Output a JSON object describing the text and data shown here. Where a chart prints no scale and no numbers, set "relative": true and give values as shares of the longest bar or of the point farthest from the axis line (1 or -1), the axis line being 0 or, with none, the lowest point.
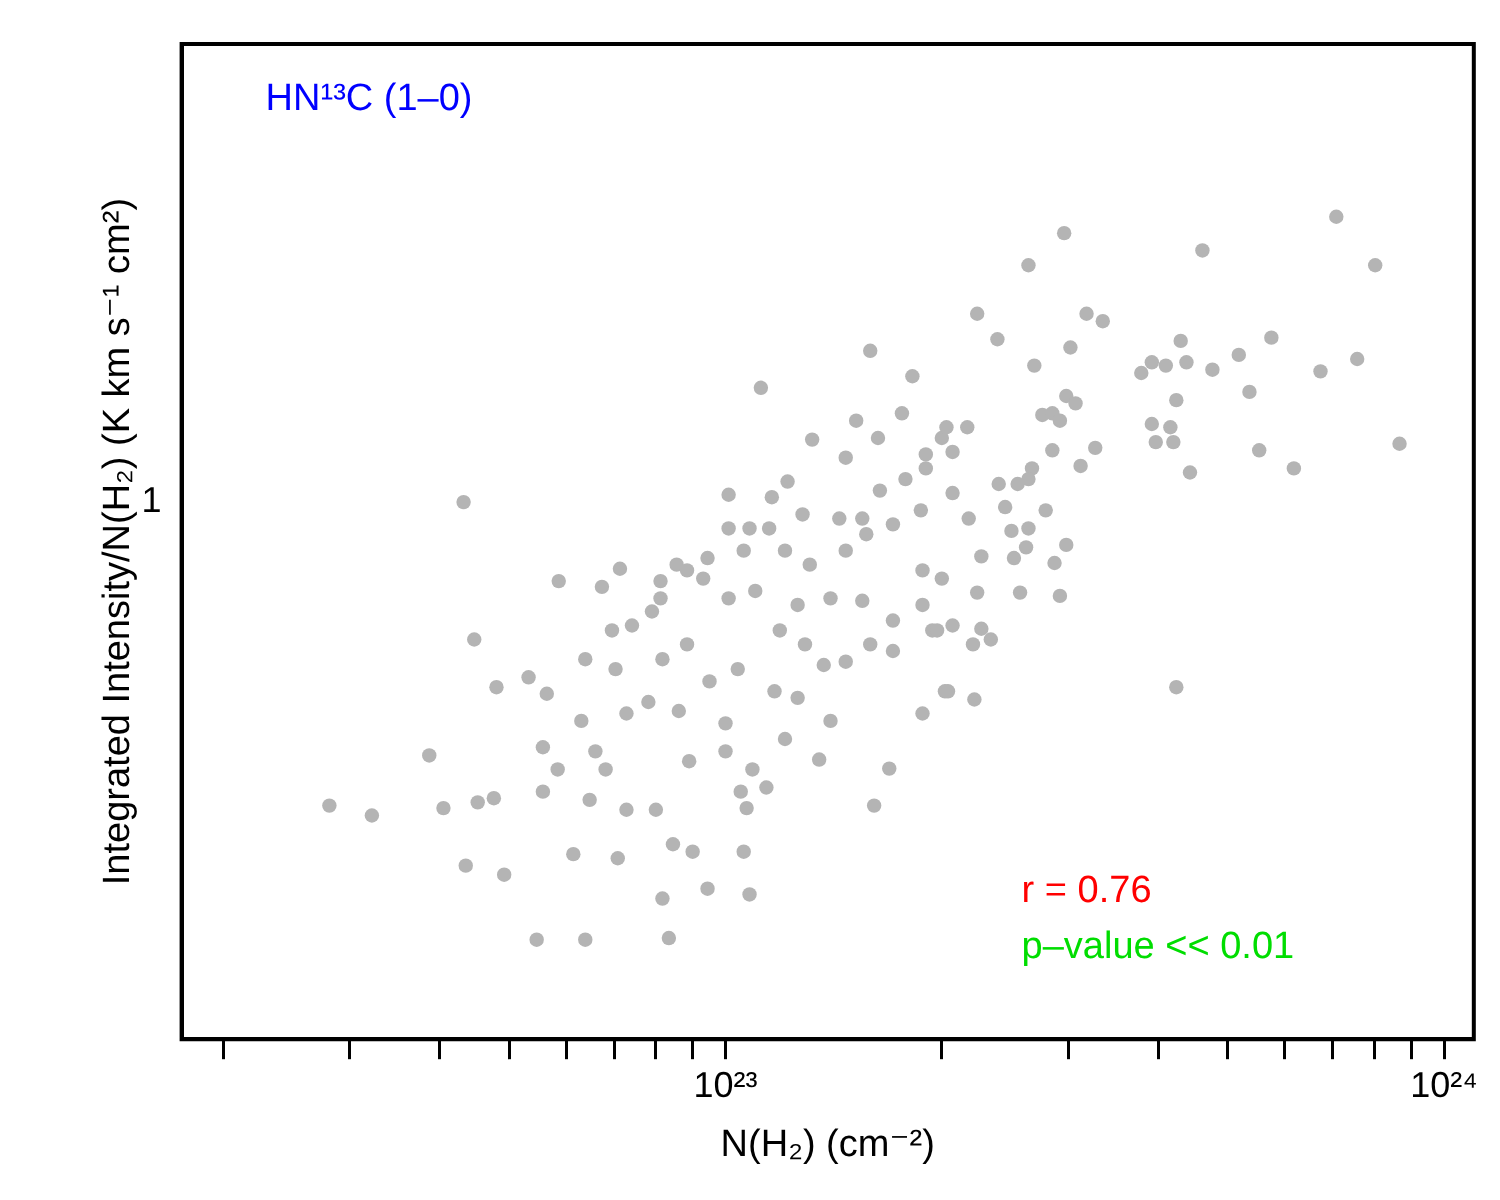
{
  "chart_data": {
    "type": "scatter",
    "xlabel": "N(H₂) (cm⁻²)",
    "ylabel": "Integrated Intensity/N(H₂) (K km s⁻¹ cm²)",
    "annotations": [
      "HN¹³C (1–0)",
      "r = 0.76",
      "p–value << 0.01",
      "1"
    ],
    "log": "x",
    "grid": false,
    "marker": "circle",
    "relative": true,
    "xlim": [
      1.75e+22,
      1.1e+24
    ],
    "xticks": [
      {
        "value": 2e+22,
        "label": null
      },
      {
        "value": 3e+22,
        "label": null
      },
      {
        "value": 4e+22,
        "label": null
      },
      {
        "value": 5e+22,
        "label": null
      },
      {
        "value": 6e+22,
        "label": null
      },
      {
        "value": 7e+22,
        "label": null
      },
      {
        "value": 8e+22,
        "label": null
      },
      {
        "value": 9e+22,
        "label": null
      },
      {
        "value": 1e+23,
        "label": "10²³"
      },
      {
        "value": 2e+23,
        "label": null
      },
      {
        "value": 3e+23,
        "label": null
      },
      {
        "value": 4e+23,
        "label": null
      },
      {
        "value": 5e+23,
        "label": null
      },
      {
        "value": 6e+23,
        "label": null
      },
      {
        "value": 7e+23,
        "label": null
      },
      {
        "value": 8e+23,
        "label": null
      },
      {
        "value": 9e+23,
        "label": null
      },
      {
        "value": 1e+24,
        "label": "10²⁴"
      }
    ],
    "series": [
      {
        "color": "#b4b4b4",
        "x": [
          4.32e+22,
          4.47e+22,
          3.87e+22,
          2.81e+22,
          3.22e+22,
          4.05e+22,
          4.35e+22,
          4.92e+22,
          4.52e+22,
          4.76e+22,
          5.46e+22,
          4.8e+22,
          5.32e+22,
          5.64e+22,
          5.57e+22,
          5.57e+22,
          5.86e+22,
          6.73e+22,
          7.13e+22,
          7.9e+22,
          8.12e+22,
          8.55e+22,
          1.01e+23,
          1.12e+23,
          1.16e+23,
          1.22e+23,
          1.32e+23,
          1.52e+23,
          1.59e+23,
          1.82e+23,
          1.76e+23,
          1.47e+23,
          1.63e+23,
          6.38e+22,
          7.03e+22,
          6.3e+22,
          6.59e+22,
          5.84e+22,
          6.81e+22,
          8e+22,
          7.28e+22,
          6.47e+22,
          6.14e+22,
          7.08e+22,
          8.45e+22,
          9e+22,
          1.06e+23,
          8.17e+22,
          9.44e+22,
          1.08e+23,
          6.38e+22,
          8.34e+22,
          1.07e+23,
          1.14e+23,
          1.05e+23,
          1.09e+23,
          8.9e+22,
          1e+23,
          1.21e+23,
          1.35e+23,
          1.69e+23,
          1.61e+23,
          1.88e+23,
          2.02e+23,
          1.17e+23,
          1.26e+23,
          1.4e+23,
          1e+23,
          8.61e+22,
          7.81e+22,
          7.28e+22,
          8.17e+22,
          8.84e+22,
          9.5e+22,
          1.04e+23,
          1.19e+23,
          1.29e+23,
          1.37e+23,
          1.47e+23,
          1.59e+23,
          1.71e+23,
          1.71e+23,
          1.55e+23,
          1.4e+23,
          1.26e+23,
          1.1e+23,
          1.01e+23,
          9.31e+22,
          9.44e+22,
          1.06e+23,
          1.21e+23,
          1.31e+23,
          1.47e+23,
          1.57e+23,
          1.71e+23,
          1.87e+23,
          1.55e+23,
          1.64e+23,
          1.78e+23,
          1.9e+23,
          1.01e+23,
          1.08e+23,
          1.15e+23,
          1.28e+23,
          1.44e+23,
          8.84e+22,
          8.12e+22,
          7.41e+22,
          6.95e+22,
          1.88e+23,
          2e+23,
          1.94e+23,
          1.88e+23,
          7.08e+23,
          2.96e+23,
          2.64e+23,
          4.61e+23,
          8.02e+23,
          2.24e+23,
          3.18e+23,
          3.35e+23,
          2.39e+23,
          3.02e+23,
          2.69e+23,
          3.79e+23,
          3.92e+23,
          4.1e+23,
          4.3e+23,
          4.38e+23,
          4.76e+23,
          5.18e+23,
          5.75e+23,
          6.73e+23,
          7.57e+23,
          8.67e+23,
          5.36e+23,
          6.18e+23,
          5.53e+23,
          4.24e+23,
          3.92e+23,
          4.16e+23,
          4.2e+23,
          3.97e+23,
          4.43e+23,
          4.24e+23,
          3.27e+23,
          3.12e+23,
          2.98e+23,
          3.07e+23,
          2.76e+23,
          2.85e+23,
          2.92e+23,
          2.85e+23,
          2.67e+23,
          2.64e+23,
          2.4e+23,
          2.55e+23,
          2.45e+23,
          2.79e+23,
          2.98e+23,
          2.64e+23,
          2.5e+23,
          2.62e+23,
          2.52e+23,
          2.27e+23,
          2.87e+23,
          2.57e+23,
          2.92e+23,
          2.24e+23,
          2.27e+23,
          2.34e+23,
          2.21e+23,
          2.07e+23,
          1.97e+23,
          2.04e+23,
          2.22e+23,
          2.18e+23,
          2.07e+23,
          2.07e+23,
          2e+23,
          2.17e+23,
          2.03e+23,
          1.9e+23
        ],
        "values": [
          0.653,
          0.486,
          0.345,
          0.284,
          0.272,
          0.281,
          0.211,
          0.2,
          0.288,
          0.293,
          0.121,
          0.428,
          0.44,
          0.42,
          0.355,
          0.301,
          0.557,
          0.55,
          0.572,
          0.52,
          0.557,
          0.577,
          0.662,
          0.792,
          0.659,
          0.678,
          0.729,
          0.752,
          0.837,
          0.806,
          0.761,
          0.707,
          0.731,
          0.462,
          0.45,
          0.387,
          0.35,
          0.328,
          0.328,
          0.279,
          0.279,
          0.291,
          0.225,
          0.22,
          0.237,
          0.228,
          0.228,
          0.171,
          0.183,
          0.176,
          0.121,
          0.123,
          0.281,
          0.306,
          0.301,
          0.328,
          0.338,
          0.35,
          0.365,
          0.34,
          0.329,
          0.284,
          0.396,
          0.423,
          0.423,
          0.415,
          0.387,
          0.384,
          0.399,
          0.41,
          0.396,
          0.462,
          0.48,
          0.435,
          0.45,
          0.497,
          0.48,
          0.455,
          0.459,
          0.48,
          0.472,
          0.509,
          0.533,
          0.536,
          0.528,
          0.545,
          0.536,
          0.56,
          0.585,
          0.594,
          0.594,
          0.577,
          0.594,
          0.614,
          0.626,
          0.643,
          0.633,
          0.667,
          0.681,
          0.694,
          0.621,
          0.621,
          0.621,
          0.638,
          0.633,
          0.57,
          0.536,
          0.503,
          0.497,
          0.57,
          0.56,
          0.497,
          0.528,
          1,
          0.98,
          0.941,
          0.959,
          0.941,
          0.882,
          0.882,
          0.873,
          0.851,
          0.841,
          0.819,
          0.81,
          0.823,
          0.819,
          0.849,
          0.823,
          0.814,
          0.832,
          0.853,
          0.812,
          0.827,
          0.724,
          0.787,
          0.694,
          0.716,
          0.777,
          0.748,
          0.744,
          0.726,
          0.726,
          0.689,
          0.428,
          0.719,
          0.697,
          0.782,
          0.773,
          0.759,
          0.761,
          0.752,
          0.716,
          0.694,
          0.681,
          0.675,
          0.675,
          0.647,
          0.643,
          0.601,
          0.621,
          0.618,
          0.598,
          0.585,
          0.587,
          0.579,
          0.543,
          0.539,
          0.543,
          0.499,
          0.486,
          0.48,
          0.503,
          0.497,
          0.423,
          0.413,
          0.633,
          0.664,
          0.714,
          0.731,
          0.744,
          0.744,
          0.711
        ]
      }
    ]
  }
}
